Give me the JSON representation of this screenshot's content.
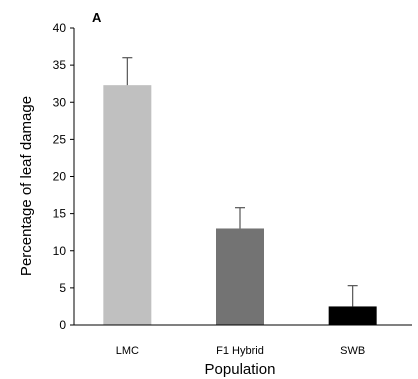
{
  "chart_data": {
    "type": "bar",
    "panel_label": "A",
    "categories": [
      "LMC",
      "F1 Hybrid",
      "SWB"
    ],
    "values": [
      32.3,
      13.0,
      2.5
    ],
    "error_upper": [
      36.0,
      15.8,
      5.3
    ],
    "bar_colors": [
      "#c0c0c0",
      "#737373",
      "#000000"
    ],
    "xlabel": "Population",
    "ylabel": "Percentage of leaf damage",
    "ylim": [
      0,
      40
    ],
    "yticks": [
      0,
      5,
      10,
      15,
      20,
      25,
      30,
      35,
      40
    ],
    "grid": false,
    "legend": "none"
  }
}
